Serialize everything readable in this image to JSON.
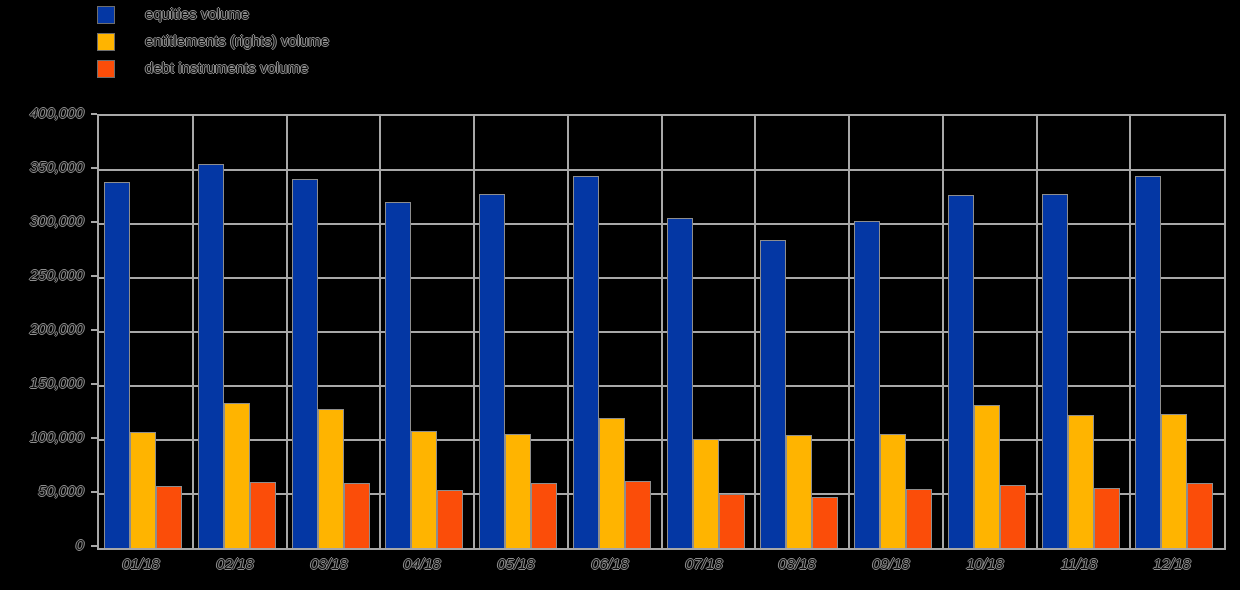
{
  "background_color": "#000000",
  "grid_color": "#a8a8a8",
  "text_outline_color": "#8f8f8f",
  "legend": {
    "items": [
      {
        "label": "equities volume",
        "color": "#0437a4"
      },
      {
        "label": "entitlements (rights) volume",
        "color": "#ffb400"
      },
      {
        "label": "debt instruments volume",
        "color": "#fb4d09"
      }
    ]
  },
  "chart_data": {
    "type": "bar",
    "title": "",
    "xlabel": "",
    "ylabel": "",
    "categories": [
      "01/18",
      "02/18",
      "03/18",
      "04/18",
      "05/18",
      "06/18",
      "07/18",
      "08/18",
      "09/18",
      "10/18",
      "11/18",
      "12/18"
    ],
    "series": [
      {
        "name": "equities volume",
        "color": "#0437a4",
        "values": [
          339000,
          356000,
          342000,
          320000,
          328000,
          344000,
          306000,
          285000,
          303000,
          327000,
          328000,
          344000
        ]
      },
      {
        "name": "entitlements (rights) volume",
        "color": "#ffb400",
        "values": [
          107000,
          134000,
          129000,
          108000,
          106000,
          120000,
          101000,
          105000,
          106000,
          132000,
          123000,
          124000
        ]
      },
      {
        "name": "debt instruments volume",
        "color": "#fb4d09",
        "values": [
          57000,
          61000,
          60000,
          54000,
          60000,
          62000,
          50000,
          47000,
          55000,
          58000,
          56000,
          60000
        ]
      }
    ],
    "ylim": [
      0,
      400000
    ],
    "ytick_step": 50000,
    "ytick_labels": [
      "0",
      "50,000",
      "100,000",
      "150,000",
      "200,000",
      "250,000",
      "300,000",
      "350,000",
      "400,000"
    ],
    "grid": true,
    "legend_position": "top-left"
  }
}
